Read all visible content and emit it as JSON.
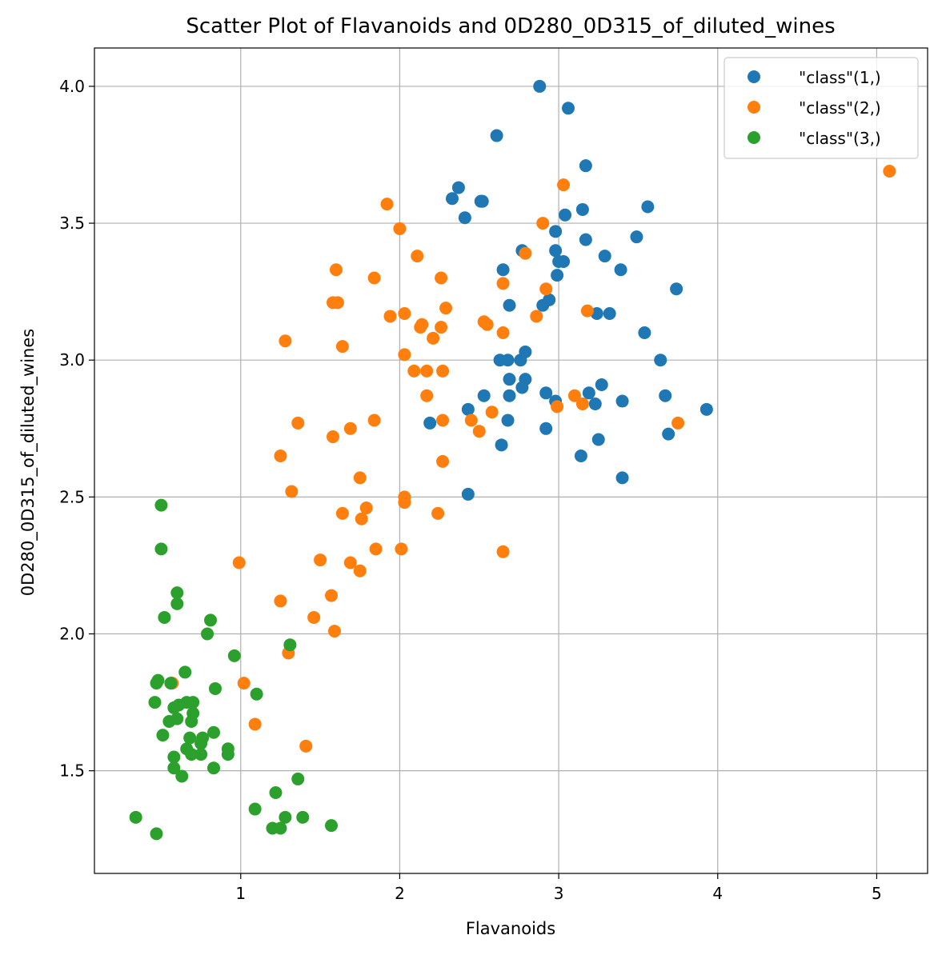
{
  "chart_data": {
    "type": "scatter",
    "title": "Scatter Plot of Flavanoids and 0D280_0D315_of_diluted_wines",
    "xlabel": "Flavanoids",
    "ylabel": "0D280_0D315_of_diluted_wines",
    "xlim": [
      0.08,
      5.32
    ],
    "ylim": [
      1.125,
      4.14
    ],
    "xticks": [
      1,
      2,
      3,
      4,
      5
    ],
    "xtick_labels": [
      "1",
      "2",
      "3",
      "4",
      "5"
    ],
    "yticks": [
      1.5,
      2.0,
      2.5,
      3.0,
      3.5,
      4.0
    ],
    "ytick_labels": [
      "1.5",
      "2.0",
      "2.5",
      "3.0",
      "3.5",
      "4.0"
    ],
    "grid": true,
    "legend_position": "top-right",
    "series": [
      {
        "name": "\"class\"(1,)",
        "color": "#1f77b4",
        "points": [
          [
            2.88,
            4.0
          ],
          [
            3.06,
            3.92
          ],
          [
            2.61,
            3.82
          ],
          [
            3.17,
            3.71
          ],
          [
            2.37,
            3.63
          ],
          [
            2.33,
            3.59
          ],
          [
            2.51,
            3.58
          ],
          [
            2.52,
            3.58
          ],
          [
            3.56,
            3.56
          ],
          [
            3.15,
            3.55
          ],
          [
            3.04,
            3.53
          ],
          [
            2.41,
            3.52
          ],
          [
            2.98,
            3.47
          ],
          [
            3.49,
            3.45
          ],
          [
            3.17,
            3.44
          ],
          [
            2.77,
            3.4
          ],
          [
            2.98,
            3.4
          ],
          [
            3.29,
            3.38
          ],
          [
            3.0,
            3.36
          ],
          [
            3.03,
            3.36
          ],
          [
            2.65,
            3.33
          ],
          [
            3.39,
            3.33
          ],
          [
            2.99,
            3.31
          ],
          [
            3.74,
            3.26
          ],
          [
            2.94,
            3.22
          ],
          [
            2.9,
            3.2
          ],
          [
            2.69,
            3.2
          ],
          [
            3.24,
            3.17
          ],
          [
            3.32,
            3.17
          ],
          [
            3.54,
            3.1
          ],
          [
            2.79,
            3.03
          ],
          [
            2.63,
            3.0
          ],
          [
            2.68,
            3.0
          ],
          [
            2.76,
            3.0
          ],
          [
            3.64,
            3.0
          ],
          [
            2.69,
            2.93
          ],
          [
            2.79,
            2.93
          ],
          [
            3.27,
            2.91
          ],
          [
            2.77,
            2.9
          ],
          [
            2.92,
            2.88
          ],
          [
            3.19,
            2.88
          ],
          [
            2.53,
            2.87
          ],
          [
            2.69,
            2.87
          ],
          [
            3.67,
            2.87
          ],
          [
            2.98,
            2.85
          ],
          [
            3.4,
            2.85
          ],
          [
            3.23,
            2.84
          ],
          [
            2.43,
            2.82
          ],
          [
            3.93,
            2.82
          ],
          [
            2.68,
            2.78
          ],
          [
            2.19,
            2.77
          ],
          [
            2.92,
            2.75
          ],
          [
            3.69,
            2.73
          ],
          [
            3.25,
            2.71
          ],
          [
            2.64,
            2.69
          ],
          [
            3.14,
            2.65
          ],
          [
            3.4,
            2.57
          ],
          [
            2.43,
            2.51
          ]
        ]
      },
      {
        "name": "\"class\"(2,)",
        "color": "#ff7f0e",
        "points": [
          [
            5.08,
            3.69
          ],
          [
            3.03,
            3.64
          ],
          [
            1.92,
            3.57
          ],
          [
            2.9,
            3.5
          ],
          [
            2.0,
            3.48
          ],
          [
            2.79,
            3.39
          ],
          [
            2.11,
            3.38
          ],
          [
            1.6,
            3.33
          ],
          [
            1.84,
            3.3
          ],
          [
            2.26,
            3.3
          ],
          [
            2.65,
            3.28
          ],
          [
            2.92,
            3.26
          ],
          [
            1.58,
            3.21
          ],
          [
            1.61,
            3.21
          ],
          [
            2.29,
            3.19
          ],
          [
            3.18,
            3.18
          ],
          [
            2.03,
            3.17
          ],
          [
            1.94,
            3.16
          ],
          [
            2.86,
            3.16
          ],
          [
            2.53,
            3.14
          ],
          [
            2.55,
            3.13
          ],
          [
            2.14,
            3.13
          ],
          [
            2.13,
            3.12
          ],
          [
            2.26,
            3.12
          ],
          [
            2.65,
            3.1
          ],
          [
            2.21,
            3.08
          ],
          [
            1.28,
            3.07
          ],
          [
            1.64,
            3.05
          ],
          [
            2.03,
            3.02
          ],
          [
            2.09,
            2.96
          ],
          [
            2.17,
            2.96
          ],
          [
            2.27,
            2.96
          ],
          [
            2.17,
            2.87
          ],
          [
            3.1,
            2.87
          ],
          [
            3.15,
            2.84
          ],
          [
            2.99,
            2.83
          ],
          [
            2.58,
            2.81
          ],
          [
            1.84,
            2.78
          ],
          [
            2.27,
            2.78
          ],
          [
            2.45,
            2.78
          ],
          [
            1.36,
            2.77
          ],
          [
            3.75,
            2.77
          ],
          [
            1.69,
            2.75
          ],
          [
            2.5,
            2.74
          ],
          [
            1.58,
            2.72
          ],
          [
            1.25,
            2.65
          ],
          [
            2.27,
            2.63
          ],
          [
            1.75,
            2.57
          ],
          [
            1.32,
            2.52
          ],
          [
            2.03,
            2.5
          ],
          [
            2.03,
            2.48
          ],
          [
            1.79,
            2.46
          ],
          [
            1.64,
            2.44
          ],
          [
            2.24,
            2.44
          ],
          [
            1.76,
            2.42
          ],
          [
            1.85,
            2.31
          ],
          [
            2.01,
            2.31
          ],
          [
            2.65,
            2.3
          ],
          [
            1.5,
            2.27
          ],
          [
            0.99,
            2.26
          ],
          [
            1.69,
            2.26
          ],
          [
            1.75,
            2.23
          ],
          [
            1.57,
            2.14
          ],
          [
            1.25,
            2.12
          ],
          [
            1.46,
            2.06
          ],
          [
            1.59,
            2.01
          ],
          [
            1.3,
            1.93
          ],
          [
            1.02,
            1.82
          ],
          [
            0.57,
            1.82
          ],
          [
            1.09,
            1.67
          ],
          [
            1.41,
            1.59
          ]
        ]
      },
      {
        "name": "\"class\"(3,)",
        "color": "#2ca02c",
        "points": [
          [
            0.5,
            2.47
          ],
          [
            0.5,
            2.31
          ],
          [
            0.6,
            2.15
          ],
          [
            0.6,
            2.11
          ],
          [
            0.52,
            2.06
          ],
          [
            0.81,
            2.05
          ],
          [
            0.79,
            2.0
          ],
          [
            1.31,
            1.96
          ],
          [
            0.96,
            1.92
          ],
          [
            0.65,
            1.86
          ],
          [
            0.48,
            1.83
          ],
          [
            0.47,
            1.82
          ],
          [
            0.56,
            1.82
          ],
          [
            0.84,
            1.8
          ],
          [
            1.1,
            1.78
          ],
          [
            0.46,
            1.75
          ],
          [
            0.66,
            1.75
          ],
          [
            0.7,
            1.75
          ],
          [
            0.61,
            1.74
          ],
          [
            0.58,
            1.73
          ],
          [
            0.7,
            1.71
          ],
          [
            0.6,
            1.69
          ],
          [
            0.69,
            1.68
          ],
          [
            0.55,
            1.68
          ],
          [
            0.83,
            1.64
          ],
          [
            0.51,
            1.63
          ],
          [
            0.68,
            1.62
          ],
          [
            0.76,
            1.62
          ],
          [
            0.75,
            1.6
          ],
          [
            0.66,
            1.58
          ],
          [
            0.92,
            1.58
          ],
          [
            0.69,
            1.56
          ],
          [
            0.75,
            1.56
          ],
          [
            0.92,
            1.56
          ],
          [
            0.58,
            1.55
          ],
          [
            0.58,
            1.51
          ],
          [
            0.83,
            1.51
          ],
          [
            0.63,
            1.48
          ],
          [
            1.36,
            1.47
          ],
          [
            1.22,
            1.42
          ],
          [
            1.09,
            1.36
          ],
          [
            0.34,
            1.33
          ],
          [
            1.28,
            1.33
          ],
          [
            1.39,
            1.33
          ],
          [
            1.57,
            1.3
          ],
          [
            1.2,
            1.29
          ],
          [
            1.25,
            1.29
          ],
          [
            0.47,
            1.27
          ]
        ]
      }
    ]
  }
}
